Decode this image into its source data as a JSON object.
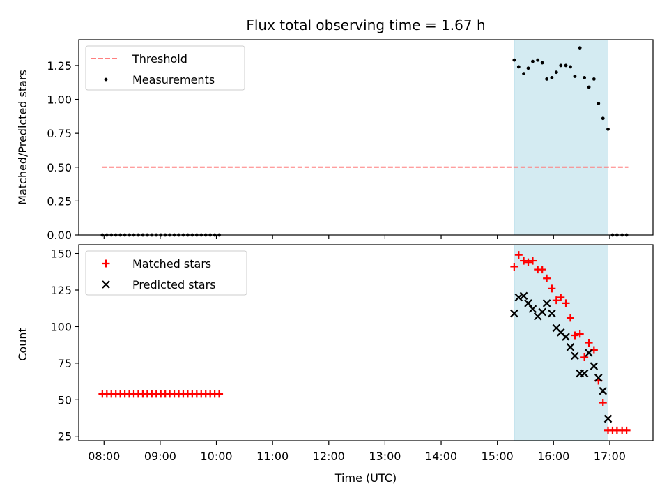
{
  "chart_data": {
    "title": "Flux total observing time = 1.67 h",
    "xlabel": "Time (UTC)",
    "x_tick_labels": [
      "08:00",
      "09:00",
      "10:00",
      "11:00",
      "12:00",
      "13:00",
      "14:00",
      "15:00",
      "16:00",
      "17:00"
    ],
    "x_tick_values_h": [
      8,
      9,
      10,
      11,
      12,
      13,
      14,
      15,
      16,
      17
    ],
    "xlim_h": [
      7.55,
      17.77
    ],
    "shaded_span_h": [
      15.3,
      16.97
    ],
    "shade_color": "#add8e6",
    "panels": [
      {
        "type": "scatter",
        "ylabel": "Matched/Predicted stars",
        "ylim": [
          0,
          1.44
        ],
        "y_ticks": [
          0,
          0.25,
          0.5,
          0.75,
          1.0,
          1.25
        ],
        "y_tick_labels": [
          "0.00",
          "0.25",
          "0.50",
          "0.75",
          "1.00",
          "1.25"
        ],
        "legend": [
          "Threshold",
          "Measurements"
        ],
        "threshold": {
          "name": "Threshold",
          "value": 0.5,
          "x_range_h": [
            7.97,
            17.33
          ],
          "color": "#ff7f7f"
        },
        "series": [
          {
            "name": "Measurements",
            "color": "#000000",
            "x_h": [
              7.97,
              8.05,
              8.13,
              8.21,
              8.29,
              8.37,
              8.45,
              8.53,
              8.61,
              8.69,
              8.77,
              8.85,
              8.93,
              9.01,
              9.09,
              9.17,
              9.25,
              9.33,
              9.41,
              9.49,
              9.57,
              9.65,
              9.73,
              9.81,
              9.89,
              9.97,
              10.05,
              15.3,
              15.38,
              15.47,
              15.55,
              15.63,
              15.72,
              15.8,
              15.88,
              15.97,
              16.05,
              16.13,
              16.22,
              16.3,
              16.38,
              16.47,
              16.55,
              16.63,
              16.72,
              16.8,
              16.88,
              16.97,
              17.05,
              17.13,
              17.22,
              17.3
            ],
            "y": [
              0,
              0,
              0,
              0,
              0,
              0,
              0,
              0,
              0,
              0,
              0,
              0,
              0,
              0,
              0,
              0,
              0,
              0,
              0,
              0,
              0,
              0,
              0,
              0,
              0,
              0,
              0,
              1.29,
              1.24,
              1.19,
              1.23,
              1.28,
              1.29,
              1.27,
              1.15,
              1.16,
              1.2,
              1.25,
              1.25,
              1.24,
              1.17,
              1.38,
              1.16,
              1.09,
              1.15,
              0.97,
              0.86,
              0.78,
              0,
              0,
              0,
              0
            ]
          }
        ]
      },
      {
        "type": "scatter",
        "ylabel": "Count",
        "ylim": [
          22,
          156
        ],
        "y_ticks": [
          25,
          50,
          75,
          100,
          125,
          150
        ],
        "y_tick_labels": [
          "25",
          "50",
          "75",
          "100",
          "125",
          "150"
        ],
        "legend": [
          "Matched stars",
          "Predicted stars"
        ],
        "series": [
          {
            "name": "Matched stars",
            "marker": "+",
            "color": "#ff0000",
            "x_h": [
              7.97,
              8.05,
              8.13,
              8.21,
              8.29,
              8.37,
              8.45,
              8.53,
              8.61,
              8.69,
              8.77,
              8.85,
              8.93,
              9.01,
              9.09,
              9.17,
              9.25,
              9.33,
              9.41,
              9.49,
              9.57,
              9.65,
              9.73,
              9.81,
              9.89,
              9.97,
              10.05,
              15.3,
              15.38,
              15.47,
              15.55,
              15.63,
              15.72,
              15.8,
              15.88,
              15.97,
              16.05,
              16.13,
              16.22,
              16.3,
              16.38,
              16.47,
              16.55,
              16.63,
              16.72,
              16.8,
              16.88,
              16.97,
              17.05,
              17.13,
              17.22,
              17.3
            ],
            "y": [
              54,
              54,
              54,
              54,
              54,
              54,
              54,
              54,
              54,
              54,
              54,
              54,
              54,
              54,
              54,
              54,
              54,
              54,
              54,
              54,
              54,
              54,
              54,
              54,
              54,
              54,
              54,
              141,
              149,
              145,
              144,
              145,
              139,
              139,
              133,
              126,
              118,
              120,
              116,
              106,
              94,
              95,
              79,
              89,
              84,
              63,
              48,
              29,
              29,
              29,
              29,
              29
            ]
          },
          {
            "name": "Predicted stars",
            "marker": "x",
            "color": "#000000",
            "x_h": [
              15.3,
              15.38,
              15.47,
              15.55,
              15.63,
              15.72,
              15.8,
              15.88,
              15.97,
              16.05,
              16.13,
              16.22,
              16.3,
              16.38,
              16.47,
              16.55,
              16.63,
              16.72,
              16.8,
              16.88,
              16.97
            ],
            "y": [
              109,
              120,
              121,
              116,
              112,
              107,
              110,
              116,
              109,
              99,
              96,
              93,
              86,
              80,
              68,
              68,
              82,
              73,
              65,
              56,
              37
            ]
          }
        ]
      }
    ]
  }
}
